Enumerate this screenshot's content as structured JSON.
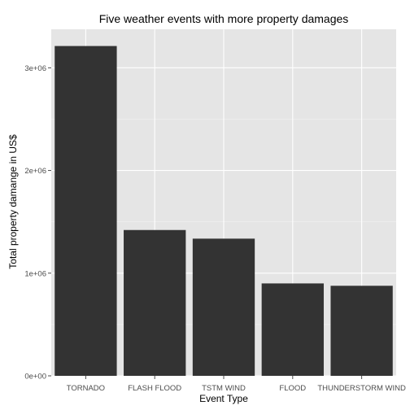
{
  "chart_data": {
    "type": "bar",
    "title": "Five weather events with more property damages",
    "xlabel": "Event Type",
    "ylabel": "Total property damange in US$",
    "categories": [
      "TORNADO",
      "FLASH FLOOD",
      "TSTM WIND",
      "FLOOD",
      "THUNDERSTORM WIND"
    ],
    "values": [
      3212000,
      1420000,
      1336000,
      900000,
      877000
    ],
    "ylim": [
      0,
      3375000
    ],
    "yticks": [
      0,
      1000000,
      2000000,
      3000000
    ],
    "ytick_labels": [
      "0e+00",
      "1e+06",
      "2e+06",
      "3e+06"
    ],
    "grid": true,
    "legend": "none",
    "colors": {
      "bar": "#333333",
      "panel": "#e5e5e5",
      "grid": "#ffffff"
    }
  }
}
